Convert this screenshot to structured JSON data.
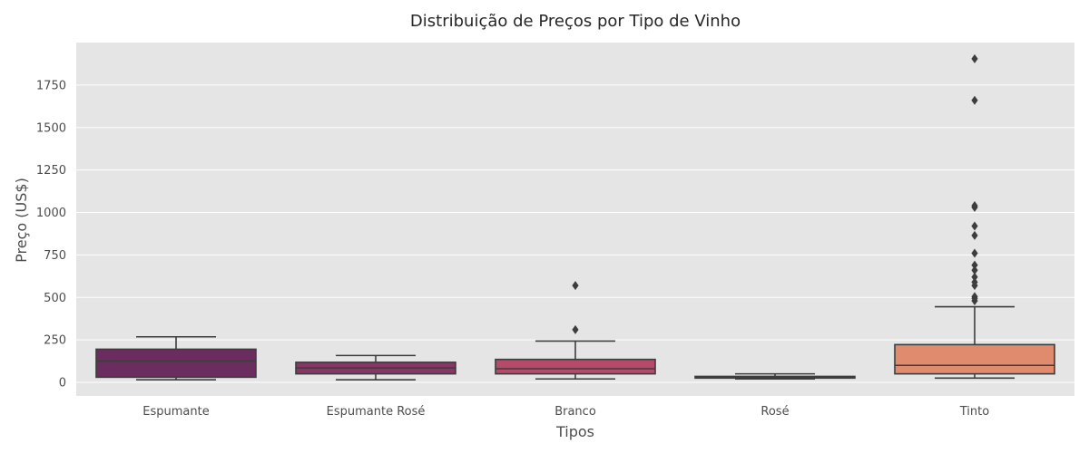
{
  "chart_data": {
    "type": "box",
    "title": "Distribuição de Preços por Tipo de Vinho",
    "xlabel": "Tipos",
    "ylabel": "Preço (US$)",
    "ylim": [
      -80,
      2000
    ],
    "yticks": [
      0,
      250,
      500,
      750,
      1000,
      1250,
      1500,
      1750
    ],
    "grid": true,
    "categories": [
      "Espumante",
      "Espumante Rosé",
      "Branco",
      "Rosé",
      "Tinto"
    ],
    "colors": [
      "#6b2c5f",
      "#8a3566",
      "#b64a6a",
      "#cf6e6a",
      "#e08a6e"
    ],
    "boxes": [
      {
        "category": "Espumante",
        "whisker_low": 15,
        "q1": 30,
        "median": 125,
        "q3": 195,
        "whisker_high": 268,
        "outliers": []
      },
      {
        "category": "Espumante Rosé",
        "whisker_low": 15,
        "q1": 50,
        "median": 85,
        "q3": 118,
        "whisker_high": 158,
        "outliers": []
      },
      {
        "category": "Branco",
        "whisker_low": 20,
        "q1": 50,
        "median": 80,
        "q3": 135,
        "whisker_high": 243,
        "outliers": [
          310,
          570
        ]
      },
      {
        "category": "Rosé",
        "whisker_low": 20,
        "q1": 25,
        "median": 30,
        "q3": 35,
        "whisker_high": 50,
        "outliers": []
      },
      {
        "category": "Tinto",
        "whisker_low": 25,
        "q1": 50,
        "median": 100,
        "q3": 222,
        "whisker_high": 445,
        "outliers": [
          480,
          495,
          505,
          570,
          590,
          620,
          660,
          690,
          760,
          865,
          920,
          1030,
          1040,
          1660,
          1905
        ]
      }
    ]
  }
}
